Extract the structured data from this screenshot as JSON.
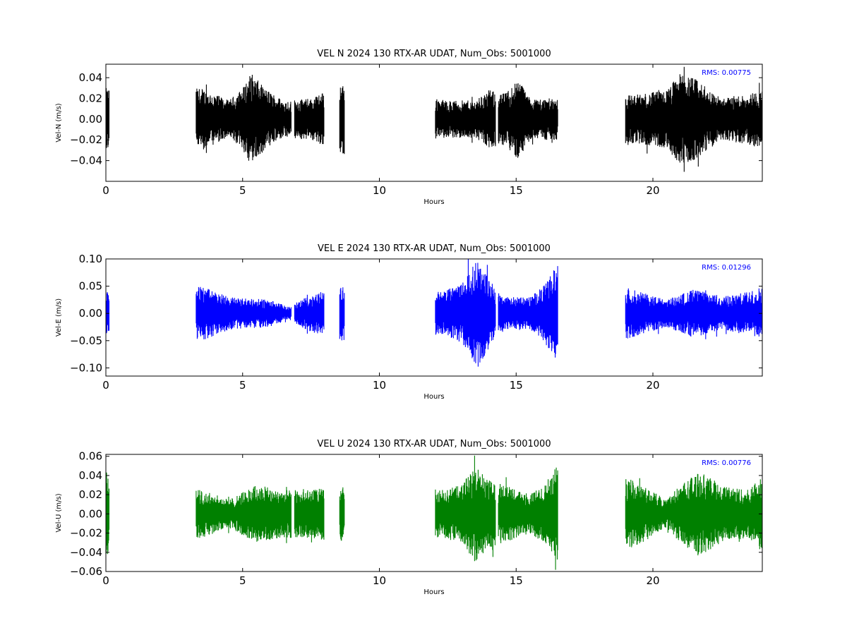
{
  "chart_data": [
    {
      "type": "line",
      "title": "VEL N 2024 130 RTX-AR  UDAT, Num_Obs: 5001000",
      "xlabel": "Hours",
      "ylabel": "Vel-N (m/s)",
      "color": "#000000",
      "xlim": [
        0,
        24
      ],
      "ylim": [
        -0.06,
        0.053
      ],
      "x_ticks": [
        0,
        5,
        10,
        15,
        20
      ],
      "x_tick_labels": [
        "0",
        "5",
        "10",
        "15",
        "20"
      ],
      "y_ticks": [
        -0.04,
        -0.02,
        0.0,
        0.02,
        0.04
      ],
      "y_tick_labels": [
        "−0.04",
        "−0.02",
        "0.00",
        "0.02",
        "0.04"
      ],
      "annotation": "RMS:  0.00775",
      "annotation_color": "#0000ff",
      "data_segments_hours": [
        [
          0.0,
          0.12
        ],
        [
          3.3,
          6.78
        ],
        [
          6.9,
          7.98
        ],
        [
          8.55,
          8.72
        ],
        [
          12.05,
          14.25
        ],
        [
          14.35,
          16.52
        ],
        [
          19.0,
          24.0
        ]
      ],
      "envelope": {
        "x": [
          0,
          3.5,
          4.5,
          5.0,
          5.3,
          5.8,
          6.5,
          7.5,
          8.6,
          12.5,
          13.5,
          14.0,
          14.6,
          15.1,
          15.5,
          16.3,
          19.5,
          20.5,
          21.0,
          21.5,
          22.5,
          23.5,
          24.0
        ],
        "amplitude": [
          0.03,
          0.03,
          0.018,
          0.03,
          0.045,
          0.03,
          0.018,
          0.02,
          0.035,
          0.018,
          0.018,
          0.028,
          0.025,
          0.04,
          0.02,
          0.02,
          0.024,
          0.028,
          0.045,
          0.04,
          0.02,
          0.025,
          0.028
        ]
      }
    },
    {
      "type": "line",
      "title": "VEL E 2024 130 RTX-AR  UDAT, Num_Obs: 5001000",
      "xlabel": "Hours",
      "ylabel": "Vel-E (m/s)",
      "color": "#0000ff",
      "xlim": [
        0,
        24
      ],
      "ylim": [
        -0.115,
        0.1
      ],
      "x_ticks": [
        0,
        5,
        10,
        15,
        20
      ],
      "x_tick_labels": [
        "0",
        "5",
        "10",
        "15",
        "20"
      ],
      "y_ticks": [
        -0.1,
        -0.05,
        0.0,
        0.05,
        0.1
      ],
      "y_tick_labels": [
        "−0.10",
        "−0.05",
        "0.00",
        "0.05",
        "0.10"
      ],
      "annotation": "RMS:  0.01296",
      "annotation_color": "#0000ff",
      "data_segments_hours": [
        [
          0.0,
          0.12
        ],
        [
          3.3,
          6.78
        ],
        [
          6.9,
          7.98
        ],
        [
          8.55,
          8.72
        ],
        [
          12.05,
          14.25
        ],
        [
          14.35,
          16.52
        ],
        [
          19.0,
          24.0
        ]
      ],
      "envelope": {
        "x": [
          0,
          3.5,
          4.5,
          6.0,
          6.7,
          7.5,
          8.6,
          12.3,
          13.0,
          13.6,
          14.2,
          14.6,
          15.5,
          16.0,
          16.5,
          19.5,
          20.5,
          21.5,
          22.5,
          23.5,
          24.0
        ],
        "amplitude": [
          0.04,
          0.05,
          0.03,
          0.025,
          0.012,
          0.035,
          0.05,
          0.04,
          0.055,
          0.1,
          0.05,
          0.03,
          0.03,
          0.05,
          0.09,
          0.04,
          0.025,
          0.045,
          0.03,
          0.04,
          0.05
        ]
      }
    },
    {
      "type": "line",
      "title": "VEL U 2024 130 RTX-AR  UDAT, Num_Obs: 5001000",
      "xlabel": "Hours",
      "ylabel": "Vel-U (m/s)",
      "color": "#008000",
      "xlim": [
        0,
        24
      ],
      "ylim": [
        -0.06,
        0.062
      ],
      "x_ticks": [
        0,
        5,
        10,
        15,
        20
      ],
      "x_tick_labels": [
        "0",
        "5",
        "10",
        "15",
        "20"
      ],
      "y_ticks": [
        -0.06,
        -0.04,
        -0.02,
        0.0,
        0.02,
        0.04,
        0.06
      ],
      "y_tick_labels": [
        "−0.06",
        "−0.04",
        "−0.02",
        "0.00",
        "0.02",
        "0.04",
        "0.06"
      ],
      "annotation": "RMS:  0.00776",
      "annotation_color": "#0000ff",
      "data_segments_hours": [
        [
          0.0,
          0.12
        ],
        [
          3.3,
          6.78
        ],
        [
          6.9,
          7.98
        ],
        [
          8.55,
          8.72
        ],
        [
          12.05,
          14.25
        ],
        [
          14.35,
          16.52
        ],
        [
          19.0,
          24.0
        ]
      ],
      "envelope": {
        "x": [
          0,
          3.5,
          4.5,
          5.5,
          6.5,
          7.5,
          8.6,
          12.3,
          13.0,
          13.5,
          14.0,
          14.6,
          15.5,
          16.0,
          16.5,
          19.3,
          20.5,
          21.0,
          21.7,
          22.5,
          23.5,
          24.0
        ],
        "amplitude": [
          0.045,
          0.025,
          0.015,
          0.03,
          0.025,
          0.025,
          0.03,
          0.025,
          0.03,
          0.05,
          0.035,
          0.03,
          0.02,
          0.03,
          0.05,
          0.035,
          0.015,
          0.03,
          0.045,
          0.03,
          0.025,
          0.04
        ]
      }
    }
  ]
}
